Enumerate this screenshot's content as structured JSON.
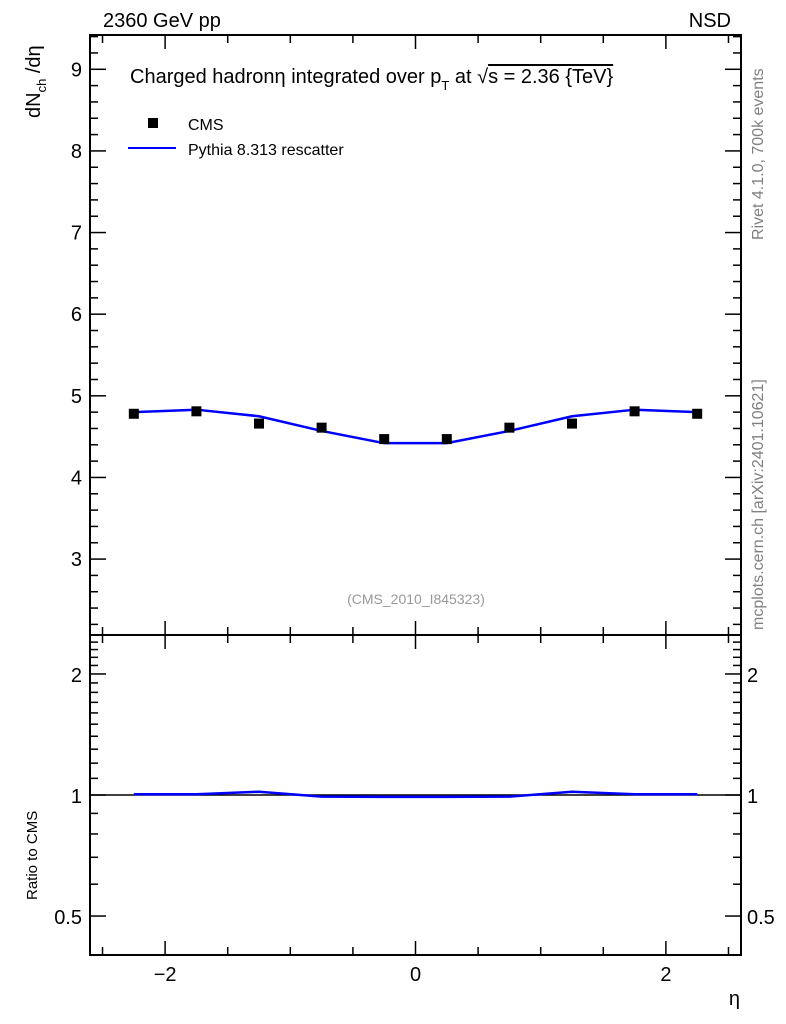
{
  "header": {
    "left": "2360 GeV pp",
    "right": "NSD"
  },
  "side_labels": {
    "top": "Rivet 4.1.0,  700k events",
    "bottom": "mcplots.cern.ch [arXiv:2401.10621]"
  },
  "watermark": "(CMS_2010_I845323)",
  "colors": {
    "data": "#000000",
    "mc": "#0000ff",
    "side": "#808080"
  },
  "chart_data": [
    {
      "type": "scatter",
      "title": "Charged hadronη integrated over p_T at √s = 2.36 {TeV}",
      "title_parts": {
        "main": "Charged hadronη integrated over p",
        "sub": "T",
        "mid": " at √",
        "s": "s = 2.36 {TeV}"
      },
      "ylabel": "dN_ch /dη",
      "ylabel_parts": {
        "a": "dN",
        "sub": "ch",
        "b": " /dη"
      },
      "xlim": [
        -2.6,
        2.6
      ],
      "ylim": [
        2.07,
        9.42
      ],
      "yticks": [
        3,
        4,
        5,
        6,
        7,
        8,
        9
      ],
      "legend": {
        "placement": "top-left",
        "entries": [
          "CMS",
          "Pythia 8.313 rescatter"
        ]
      },
      "x": [
        -2.25,
        -1.75,
        -1.25,
        -0.75,
        -0.25,
        0.25,
        0.75,
        1.25,
        1.75,
        2.25
      ],
      "series": [
        {
          "name": "CMS",
          "values": [
            4.78,
            4.81,
            4.66,
            4.61,
            4.47,
            4.47,
            4.61,
            4.66,
            4.81,
            4.78
          ]
        },
        {
          "name": "Pythia 8.313 rescatter",
          "values": [
            4.8,
            4.83,
            4.75,
            4.57,
            4.42,
            4.42,
            4.57,
            4.75,
            4.83,
            4.8
          ]
        }
      ]
    },
    {
      "type": "line",
      "ylabel": "Ratio to CMS",
      "xlabel": "η",
      "xlim": [
        -2.6,
        2.6
      ],
      "ylim": [
        0.4,
        2.5
      ],
      "yscale": "log",
      "yticks": [
        0.5,
        1,
        2
      ],
      "ytick_labels": [
        "0.5",
        "1",
        "2"
      ],
      "xticks": [
        -2,
        0,
        2
      ],
      "xtick_labels": [
        "−2",
        "0",
        "2"
      ],
      "x": [
        -2.25,
        -1.75,
        -1.25,
        -0.75,
        -0.25,
        0.25,
        0.75,
        1.25,
        1.75,
        2.25
      ],
      "series": [
        {
          "name": "Pythia 8.313 rescatter",
          "values": [
            1.004,
            1.004,
            1.019,
            0.991,
            0.989,
            0.989,
            0.991,
            1.019,
            1.004,
            1.004
          ]
        }
      ]
    }
  ]
}
